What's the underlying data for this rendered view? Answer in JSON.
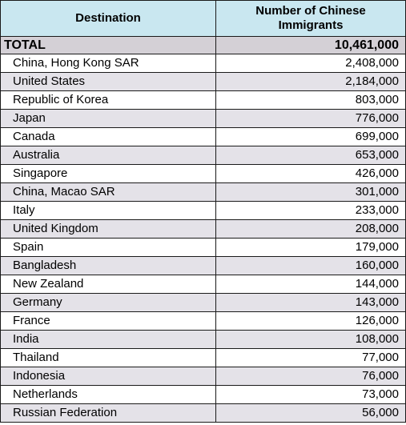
{
  "table": {
    "headers": {
      "destination": "Destination",
      "immigrants": "Number of Chinese Immigrants"
    },
    "total": {
      "label": "TOTAL",
      "value": "10,461,000"
    },
    "rows": [
      {
        "destination": "China, Hong Kong SAR",
        "value": "2,408,000"
      },
      {
        "destination": "United States",
        "value": "2,184,000"
      },
      {
        "destination": "Republic of Korea",
        "value": "803,000"
      },
      {
        "destination": "Japan",
        "value": "776,000"
      },
      {
        "destination": "Canada",
        "value": "699,000"
      },
      {
        "destination": "Australia",
        "value": "653,000"
      },
      {
        "destination": "Singapore",
        "value": "426,000"
      },
      {
        "destination": "China, Macao SAR",
        "value": "301,000"
      },
      {
        "destination": "Italy",
        "value": "233,000"
      },
      {
        "destination": "United Kingdom",
        "value": "208,000"
      },
      {
        "destination": "Spain",
        "value": "179,000"
      },
      {
        "destination": "Bangladesh",
        "value": "160,000"
      },
      {
        "destination": "New Zealand",
        "value": "144,000"
      },
      {
        "destination": "Germany",
        "value": "143,000"
      },
      {
        "destination": "France",
        "value": "126,000"
      },
      {
        "destination": "India",
        "value": "108,000"
      },
      {
        "destination": "Thailand",
        "value": "77,000"
      },
      {
        "destination": "Indonesia",
        "value": "76,000"
      },
      {
        "destination": "Netherlands",
        "value": "73,000"
      },
      {
        "destination": "Russian Federation",
        "value": "56,000"
      }
    ]
  },
  "colors": {
    "header_bg": "#c9e7f0",
    "total_bg": "#d4d0d6",
    "stripe_bg": "#e4e2e8"
  }
}
